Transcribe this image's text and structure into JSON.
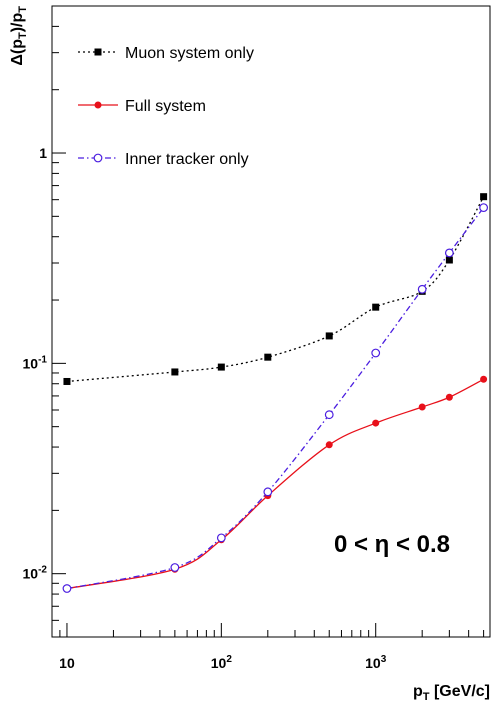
{
  "chart_data": {
    "type": "line",
    "x_scale": "log",
    "y_scale": "log",
    "xlim": [
      8,
      5500
    ],
    "ylim": [
      0.005,
      5
    ],
    "xlabel": "p_T [GeV/c]",
    "ylabel": "Δ(p_T)/p_T",
    "x_ticks": [
      {
        "value": 10,
        "label": "10"
      },
      {
        "value": 100,
        "label": "10",
        "exp": "2"
      },
      {
        "value": 1000,
        "label": "10",
        "exp": "3"
      }
    ],
    "y_ticks": [
      {
        "value": 0.01,
        "label": "10",
        "exp": "-2"
      },
      {
        "value": 0.1,
        "label": "10",
        "exp": "-1"
      },
      {
        "value": 1,
        "label": "1",
        "exp": ""
      }
    ],
    "annotation": "0 < η < 0.8",
    "legend_position": "top-left",
    "series": [
      {
        "name": "Muon system only",
        "color": "#000000",
        "line": "dotted",
        "marker": "filled-square",
        "x": [
          10,
          50,
          100,
          200,
          500,
          1000,
          2000,
          3000,
          5000
        ],
        "y": [
          0.082,
          0.091,
          0.096,
          0.107,
          0.135,
          0.185,
          0.22,
          0.31,
          0.62
        ]
      },
      {
        "name": "Full system",
        "color": "#e8101a",
        "line": "solid",
        "marker": "filled-circle",
        "x": [
          10,
          50,
          100,
          200,
          500,
          1000,
          2000,
          3000,
          5000
        ],
        "y": [
          0.0085,
          0.0105,
          0.0145,
          0.0235,
          0.041,
          0.052,
          0.062,
          0.069,
          0.084
        ]
      },
      {
        "name": "Inner tracker only",
        "color": "#4b1ee0",
        "line": "dash-dot",
        "marker": "open-circle",
        "x": [
          10,
          50,
          100,
          200,
          500,
          1000,
          2000,
          3000,
          5000
        ],
        "y": [
          0.0085,
          0.0107,
          0.0148,
          0.0245,
          0.057,
          0.112,
          0.225,
          0.335,
          0.55
        ]
      }
    ]
  }
}
